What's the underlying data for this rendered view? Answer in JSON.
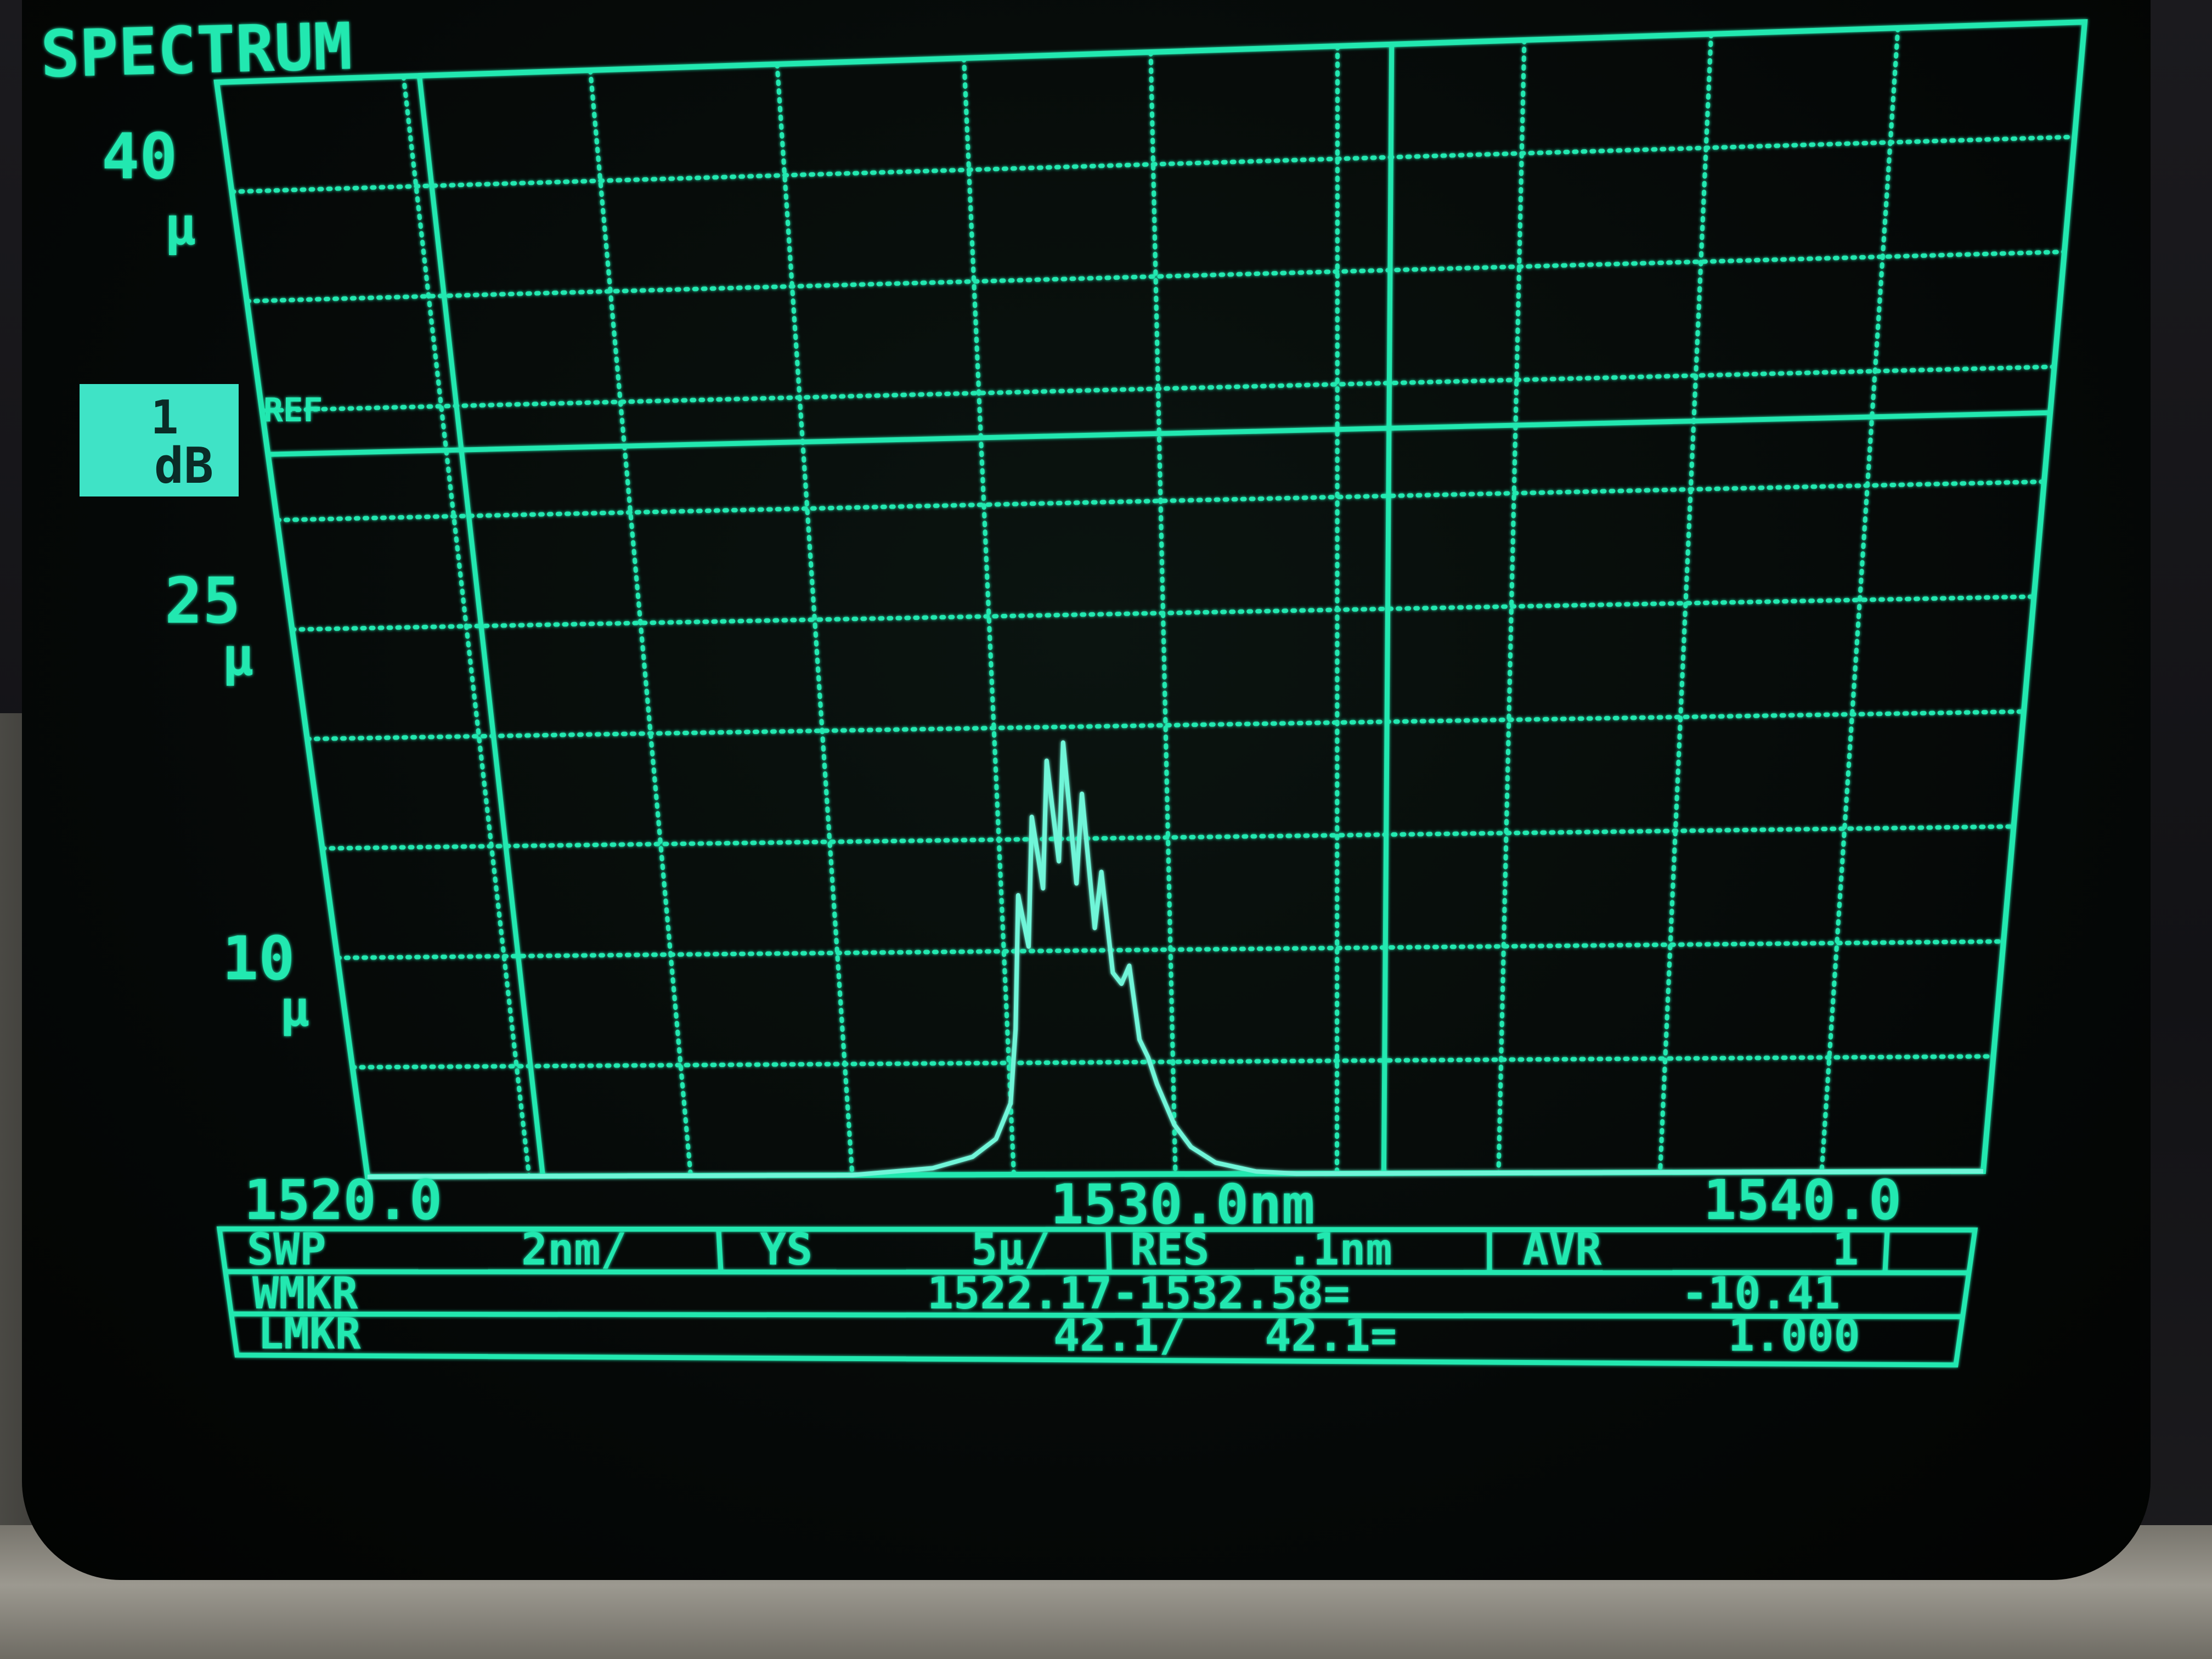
{
  "screen": {
    "title": "SPECTRUM",
    "phosphor_color": "#22e8b0",
    "ref_label": "REF",
    "log_indicator": [
      "1",
      "dB"
    ]
  },
  "y_axis": {
    "top": {
      "value": "40",
      "unit": "µ"
    },
    "mid": {
      "value": "25",
      "unit": "µ"
    },
    "low": {
      "value": "10",
      "unit": "µ"
    }
  },
  "x_axis": {
    "start": "1520.0",
    "center": "1530.0nm",
    "stop": "1540.0"
  },
  "status_rows": {
    "row1": [
      "SWP",
      "2nm/",
      "YS",
      "5µ/",
      "RES",
      ".1nm",
      "AVR",
      "1"
    ],
    "row2": {
      "label": "WMKR",
      "value": "1522.17-1532.58=",
      "result": "-10.41"
    },
    "row3": {
      "label": "LMKR",
      "value": "42.1/   42.1=",
      "result": "1.000"
    }
  },
  "chart_data": {
    "type": "line",
    "title": "SPECTRUM",
    "xlabel": "",
    "ylabel": "",
    "xlim": [
      1520.0,
      1540.0
    ],
    "ylim": [
      0,
      50
    ],
    "grid": true,
    "markers": {
      "left_wavelength": 1522.17,
      "right_wavelength": 1532.58,
      "ref_level": 33
    },
    "series": [
      {
        "x": [
          1520.0,
          1526.0,
          1527.0,
          1527.5,
          1527.8,
          1528.0,
          1528.1,
          1528.2,
          1528.3,
          1528.4,
          1528.5,
          1528.6,
          1528.7,
          1528.8,
          1528.9,
          1529.0,
          1529.1,
          1529.2,
          1529.3,
          1529.4,
          1529.5,
          1529.6,
          1529.7,
          1529.8,
          1530.0,
          1530.2,
          1530.5,
          1531.0,
          1531.5,
          1540.0
        ],
        "y": [
          0,
          0,
          0.3,
          0.8,
          1.6,
          3.2,
          6.5,
          12.5,
          10.2,
          16.0,
          12.8,
          18.5,
          14.0,
          19.3,
          13.0,
          17.0,
          11.0,
          13.5,
          9.0,
          8.5,
          9.3,
          6.0,
          5.2,
          4.0,
          2.2,
          1.2,
          0.5,
          0.1,
          0.0,
          0
        ]
      }
    ]
  }
}
